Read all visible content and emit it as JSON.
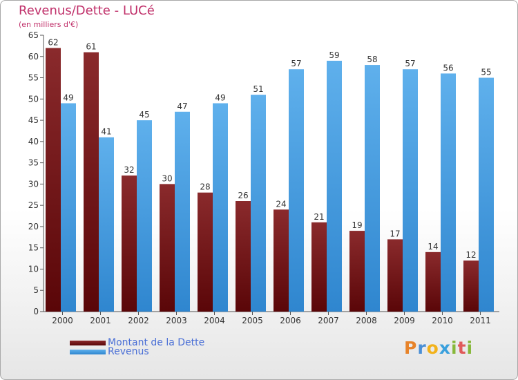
{
  "chart_data": {
    "type": "bar",
    "title": "Revenus/Dette - LUCé",
    "subtitle": "(en milliers d'€)",
    "categories": [
      "2000",
      "2001",
      "2002",
      "2003",
      "2004",
      "2005",
      "2006",
      "2007",
      "2008",
      "2009",
      "2010",
      "2011"
    ],
    "series": [
      {
        "name": "Montant de la Dette",
        "color": "#7a1518",
        "values": [
          62,
          61,
          32,
          30,
          28,
          26,
          24,
          21,
          19,
          17,
          14,
          12
        ]
      },
      {
        "name": "Revenus",
        "color": "#55a9e8",
        "values": [
          49,
          41,
          45,
          47,
          49,
          51,
          57,
          59,
          58,
          57,
          56,
          55
        ]
      }
    ],
    "ylim": [
      0,
      65
    ],
    "yticks": [
      0,
      5,
      10,
      15,
      20,
      25,
      30,
      35,
      40,
      45,
      50,
      55,
      60,
      65
    ],
    "grid": false,
    "legend_position": "bottom-left"
  },
  "logo": {
    "letters": [
      "P",
      "r",
      "o",
      "x",
      "i",
      "t",
      "i"
    ],
    "colors": [
      "#e7832a",
      "#4a8fd6",
      "#f2b21b",
      "#3aa0dd",
      "#87b83a",
      "#e05a5a",
      "#87b83a"
    ]
  }
}
